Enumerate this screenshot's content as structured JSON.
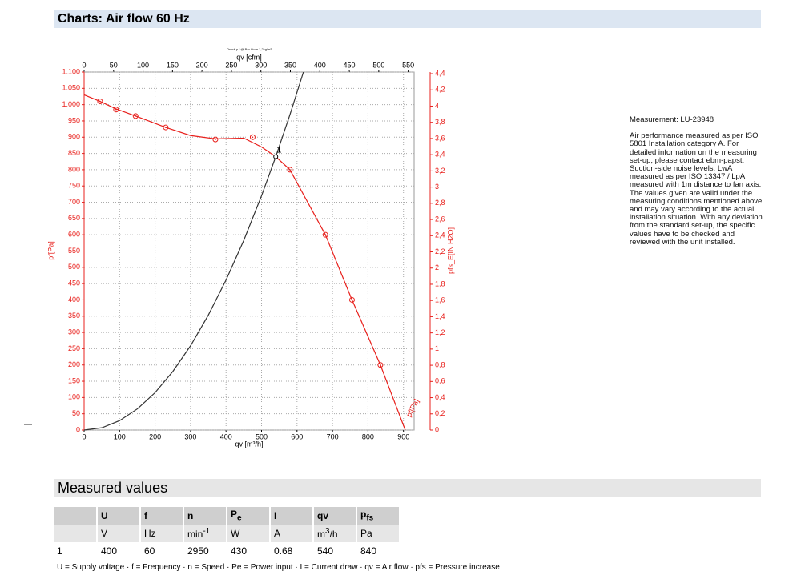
{
  "header": {
    "title": "Charts: Air flow 60 Hz"
  },
  "chart_data": {
    "type": "line",
    "title": "Druck p f @ Bar Atom 1,2kg/m³",
    "xlabel": "qv [m³/h]",
    "x2label": "qv [cfm]",
    "ylabel": "pf[Pa]",
    "y2label": "pfs_E[IN H2O]",
    "xlim": [
      0,
      930
    ],
    "xticks": [
      0,
      100,
      200,
      300,
      400,
      500,
      600,
      700,
      800,
      900
    ],
    "x2lim": [
      0,
      560
    ],
    "x2ticks": [
      0,
      50,
      100,
      150,
      200,
      250,
      300,
      350,
      400,
      450,
      500,
      550
    ],
    "ylim": [
      0,
      1100
    ],
    "yticks": [
      0,
      50,
      100,
      150,
      200,
      250,
      300,
      350,
      400,
      450,
      500,
      550,
      600,
      650,
      700,
      750,
      800,
      850,
      900,
      950,
      {
        "value": 1000,
        "label": "1.000"
      },
      {
        "value": 1050,
        "label": "1.050"
      },
      {
        "value": 1100,
        "label": "1.100"
      }
    ],
    "y2lim": [
      0,
      4.42
    ],
    "y2ticks": [
      0,
      {
        "value": 0.2,
        "label": "0,2"
      },
      {
        "value": 0.4,
        "label": "0,4"
      },
      {
        "value": 0.6,
        "label": "0,6"
      },
      {
        "value": 0.8,
        "label": "0,8"
      },
      1,
      {
        "value": 1.2,
        "label": "1,2"
      },
      {
        "value": 1.4,
        "label": "1,4"
      },
      {
        "value": 1.6,
        "label": "1,6"
      },
      {
        "value": 1.8,
        "label": "1,8"
      },
      2,
      {
        "value": 2.2,
        "label": "2,2"
      },
      {
        "value": 2.4,
        "label": "2,4"
      },
      {
        "value": 2.6,
        "label": "2,6"
      },
      {
        "value": 2.8,
        "label": "2,8"
      },
      3,
      {
        "value": 3.2,
        "label": "3,2"
      },
      {
        "value": 3.4,
        "label": "3,4"
      },
      {
        "value": 3.6,
        "label": "3,6"
      },
      {
        "value": 3.8,
        "label": "3,8"
      },
      4,
      {
        "value": 4.2,
        "label": "4,2"
      },
      {
        "value": 4.4,
        "label": "4,4"
      }
    ],
    "grid": true,
    "axis_color": "#e8201c",
    "series": [
      {
        "name": "pf[Pa]",
        "color": "#e8201c",
        "marker": false,
        "x": [
          0,
          45,
          90,
          145,
          230,
          300,
          370,
          450,
          500,
          540,
          580,
          680,
          755,
          835,
          905
        ],
        "values": [
          1030,
          1010,
          987,
          965,
          930,
          905,
          895,
          897,
          870,
          840,
          800,
          600,
          400,
          200,
          0
        ]
      },
      {
        "color": "#e8201c",
        "marker": true,
        "x": [
          45,
          90,
          145,
          230,
          370,
          475,
          580,
          680,
          755,
          835
        ],
        "values": [
          1010,
          985,
          965,
          930,
          893,
          900,
          800,
          600,
          400,
          200
        ]
      },
      {
        "color": "#333333",
        "marker": false,
        "x": [
          0,
          50,
          100,
          150,
          200,
          250,
          300,
          350,
          400,
          450,
          500,
          540,
          580,
          618
        ],
        "values": [
          0,
          7,
          29,
          65,
          115,
          180,
          259,
          353,
          461,
          583,
          720,
          840,
          969,
          1100
        ]
      }
    ],
    "annotations": [
      {
        "text": "1",
        "x": 540,
        "y": 840
      }
    ]
  },
  "measurement": {
    "id": "Measurement: LU-23948",
    "text": "Air performance measured as per ISO 5801 Installation category A. For detailed information on the measuring set-up, please contact ebm-papst. Suction-side noise levels: LwA measured as per ISO 13347 / LpA measured with 1m distance to fan axis. The values given are valid under the measuring conditions mentioned above and may vary according to the actual installation situation. With any deviation from the standard set-up, the specific values have to be checked and reviewed with the unit installed."
  },
  "table": {
    "title": "Measured values",
    "header": [
      {
        "main": "U"
      },
      {
        "main": "f"
      },
      {
        "main": "n"
      },
      {
        "main": "P",
        "sub": "e"
      },
      {
        "main": "I"
      },
      {
        "main": "qv"
      },
      {
        "main": "p",
        "sub": "fs"
      }
    ],
    "units": [
      {
        "main": "V"
      },
      {
        "main": "Hz"
      },
      {
        "main": "min",
        "sup": "-1"
      },
      {
        "main": "W"
      },
      {
        "main": "A"
      },
      {
        "main": "m",
        "sup": "3",
        "rest": "/h"
      },
      {
        "main": "Pa"
      }
    ],
    "rows": [
      [
        "1",
        "400",
        "60",
        "2950",
        "430",
        "0.68",
        "540",
        "840"
      ]
    ],
    "footnote": "U = Supply voltage · f = Frequency · n = Speed · Pe = Power input · I = Current draw · qv = Air flow · pfs = Pressure increase"
  }
}
